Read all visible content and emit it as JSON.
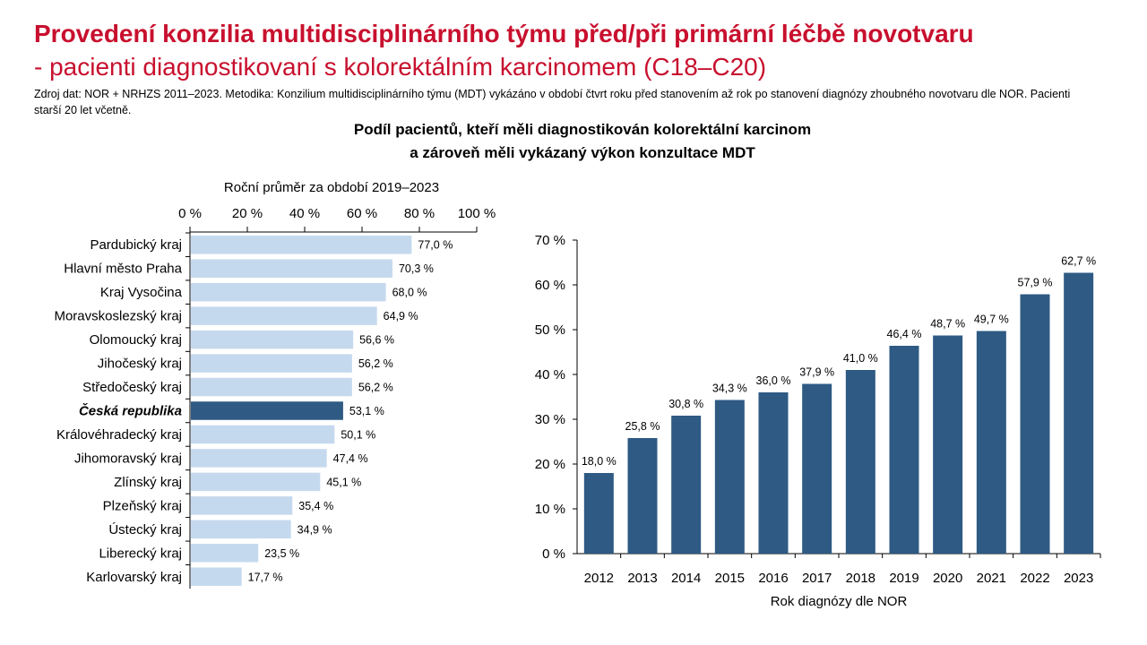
{
  "header": {
    "title_line1": "Provedení konzilia multidisciplinárního týmu před/při primární léčbě novotvaru",
    "title_line2": "- pacienti diagnostikovaní s kolorektálním karcinomem (C18–C20)",
    "source": "Zdroj dat: NOR + NRHZS 2011–2023. Metodika: Konzilium multidisciplinárního týmu (MDT) vykázáno v období čtvrt roku před stanovením až rok po stanovení diagnózy zhoubného novotvaru dle NOR. Pacienti starší 20 let včetně.",
    "chart_title_line1": "Podíl pacientů, kteří měli diagnostikován kolorektální karcinom",
    "chart_title_line2": "a zároveň měli vykázaný výkon konzultace MDT"
  },
  "colors": {
    "title": "#c8102e",
    "bar_light": "#c5d9ee",
    "bar_dark": "#2e5a84"
  },
  "chart_data": [
    {
      "type": "bar",
      "orientation": "horizontal",
      "title": "Roční průměr za období 2019–2023",
      "xlim": [
        0,
        100
      ],
      "ticks": [
        "0 %",
        "20 %",
        "40 %",
        "60 %",
        "80 %",
        "100 %"
      ],
      "highlight": "Česká republika",
      "categories": [
        "Pardubický kraj",
        "Hlavní město Praha",
        "Kraj Vysočina",
        "Moravskoslezský kraj",
        "Olomoucký kraj",
        "Jihočeský kraj",
        "Středočeský kraj",
        "Česká republika",
        "Královéhradecký kraj",
        "Jihomoravský kraj",
        "Zlínský kraj",
        "Plzeňský kraj",
        "Ústecký kraj",
        "Liberecký kraj",
        "Karlovarský kraj"
      ],
      "values": [
        77.0,
        70.3,
        68.0,
        64.9,
        56.6,
        56.2,
        56.2,
        53.1,
        50.1,
        47.4,
        45.1,
        35.4,
        34.9,
        23.5,
        17.7
      ],
      "labels": [
        "77,0 %",
        "70,3 %",
        "68,0 %",
        "64,9 %",
        "56,6 %",
        "56,2 %",
        "56,2 %",
        "53,1 %",
        "50,1 %",
        "47,4 %",
        "45,1 %",
        "35,4 %",
        "34,9 %",
        "23,5 %",
        "17,7 %"
      ]
    },
    {
      "type": "bar",
      "orientation": "vertical",
      "xlabel": "Rok diagnózy dle NOR",
      "ylim": [
        0,
        70
      ],
      "ticks": [
        "0 %",
        "10 %",
        "20 %",
        "30 %",
        "40 %",
        "50 %",
        "60 %",
        "70 %"
      ],
      "categories": [
        "2012",
        "2013",
        "2014",
        "2015",
        "2016",
        "2017",
        "2018",
        "2019",
        "2020",
        "2021",
        "2022",
        "2023"
      ],
      "values": [
        18.0,
        25.8,
        30.8,
        34.3,
        36.0,
        37.9,
        41.0,
        46.4,
        48.7,
        49.7,
        57.9,
        62.7
      ],
      "labels": [
        "18,0 %",
        "25,8 %",
        "30,8 %",
        "34,3 %",
        "36,0 %",
        "37,9 %",
        "41,0 %",
        "46,4 %",
        "48,7 %",
        "49,7 %",
        "57,9 %",
        "62,7 %"
      ]
    }
  ]
}
